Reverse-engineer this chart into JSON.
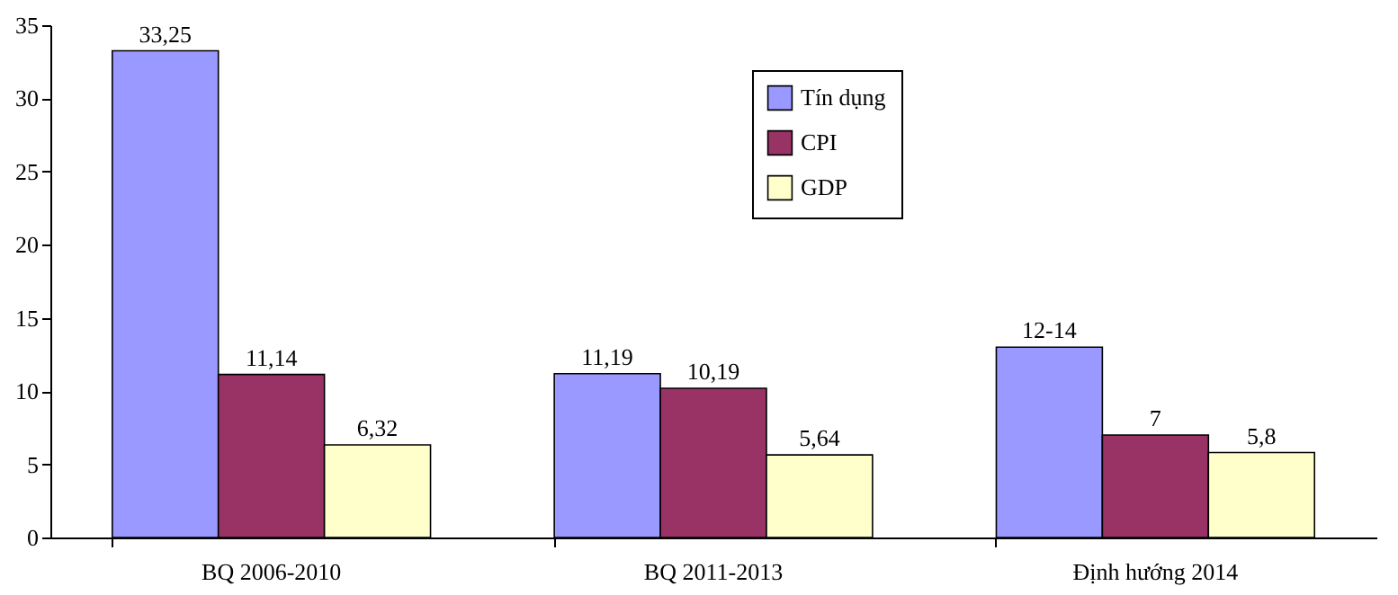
{
  "chart_data": {
    "type": "bar",
    "categories": [
      "BQ 2006-2010",
      "BQ 2011-2013",
      "Định hướng 2014"
    ],
    "series": [
      {
        "name": "Tín dụng",
        "color": "#9999ff",
        "values": [
          33.25,
          11.19,
          13
        ],
        "value_labels": [
          "33,25",
          "11,19",
          "12-14"
        ]
      },
      {
        "name": "CPI",
        "color": "#993366",
        "values": [
          11.14,
          10.19,
          7
        ],
        "value_labels": [
          "11,14",
          "10,19",
          "7"
        ]
      },
      {
        "name": "GDP",
        "color": "#ffffcc",
        "values": [
          6.32,
          5.64,
          5.8
        ],
        "value_labels": [
          "6,32",
          "5,64",
          "5,8"
        ]
      }
    ],
    "ylim": [
      0,
      35
    ],
    "yticks": [
      0,
      5,
      10,
      15,
      20,
      25,
      30,
      35
    ],
    "grid": false,
    "legend": "top"
  }
}
